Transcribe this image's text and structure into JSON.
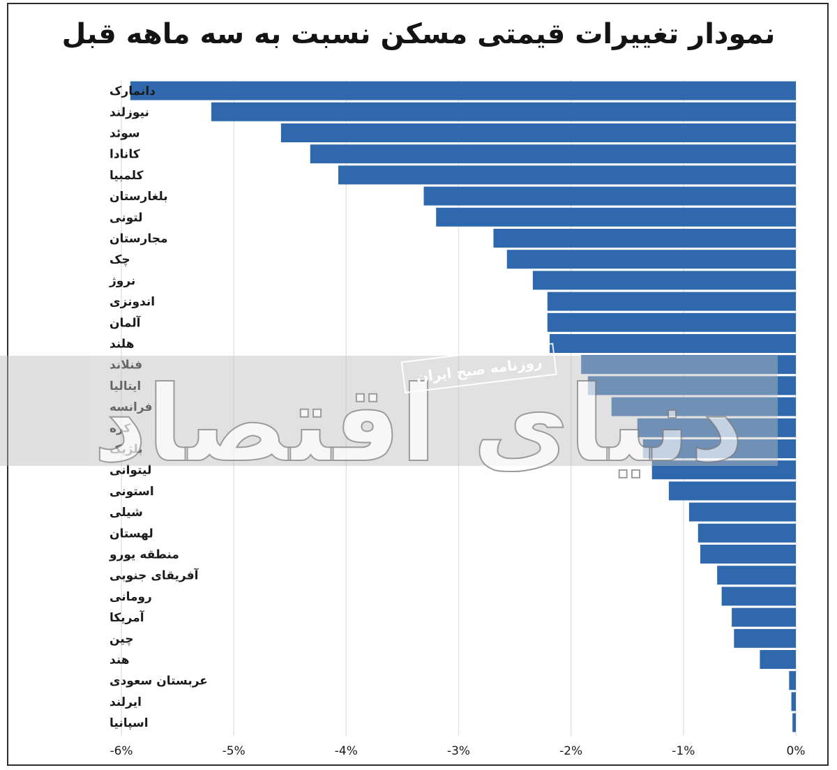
{
  "chart_data": {
    "type": "bar",
    "orientation": "horizontal",
    "title": "نمودار تغییرات قیمتی مسکن نسبت به سه ماهه قبل",
    "xlabel": "",
    "ylabel": "",
    "xlim": [
      -6,
      0
    ],
    "grid": true,
    "bar_color": "#2f68ad",
    "categories": [
      "دانمارک",
      "نیوزلند",
      "سوئد",
      "کانادا",
      "کلمبیا",
      "بلغارستان",
      "لتونی",
      "مجارستان",
      "چک",
      "نروژ",
      "اندونزی",
      "آلمان",
      "هلند",
      "فنلاند",
      "ایتالیا",
      "فرانسه",
      "کره",
      "بلژیک",
      "لیتوانی",
      "استونی",
      "شیلی",
      "لهستان",
      "منطقه یورو",
      "آفریقای جنوبی",
      "رومانی",
      "آمریکا",
      "چین",
      "هند",
      "عربستان سعودی",
      "ایرلند",
      "اسپانیا"
    ],
    "values": [
      -5.92,
      -5.2,
      -4.58,
      -4.32,
      -4.07,
      -3.31,
      -3.2,
      -2.69,
      -2.57,
      -2.34,
      -2.21,
      -2.21,
      -2.19,
      -1.91,
      -1.85,
      -1.64,
      -1.41,
      -1.36,
      -1.28,
      -1.13,
      -0.95,
      -0.87,
      -0.85,
      -0.7,
      -0.66,
      -0.57,
      -0.55,
      -0.32,
      -0.06,
      -0.04,
      -0.03
    ],
    "xticks": [
      "-6%",
      "-5%",
      "-4%",
      "-3%",
      "-2%",
      "-1%",
      "0%"
    ]
  },
  "watermark": {
    "brand_text": "دنیای اقتصاد",
    "stamp_text": "روزنامه صبح ایران"
  }
}
